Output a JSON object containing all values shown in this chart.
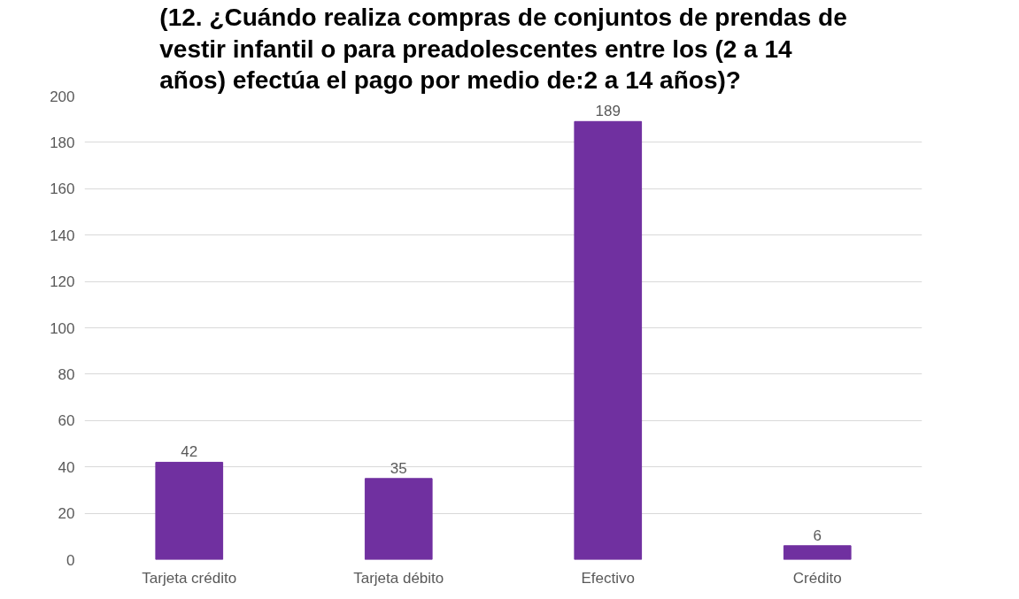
{
  "chart_data": {
    "type": "bar",
    "title": "(12. ¿Cuándo realiza compras de conjuntos de prendas de vestir infantil o para preadolescentes entre los (2 a 14 años) efectúa el pago por medio de:2 a 14 años)?",
    "categories": [
      "Tarjeta crédito",
      "Tarjeta débito",
      "Efectivo",
      "Crédito"
    ],
    "values": [
      42,
      35,
      189,
      6
    ],
    "color": "#7030a0",
    "ylim": [
      0,
      200
    ],
    "yticks": [
      0,
      20,
      40,
      60,
      80,
      100,
      120,
      140,
      160,
      180,
      200
    ],
    "grid": "y",
    "data_labels": true
  }
}
